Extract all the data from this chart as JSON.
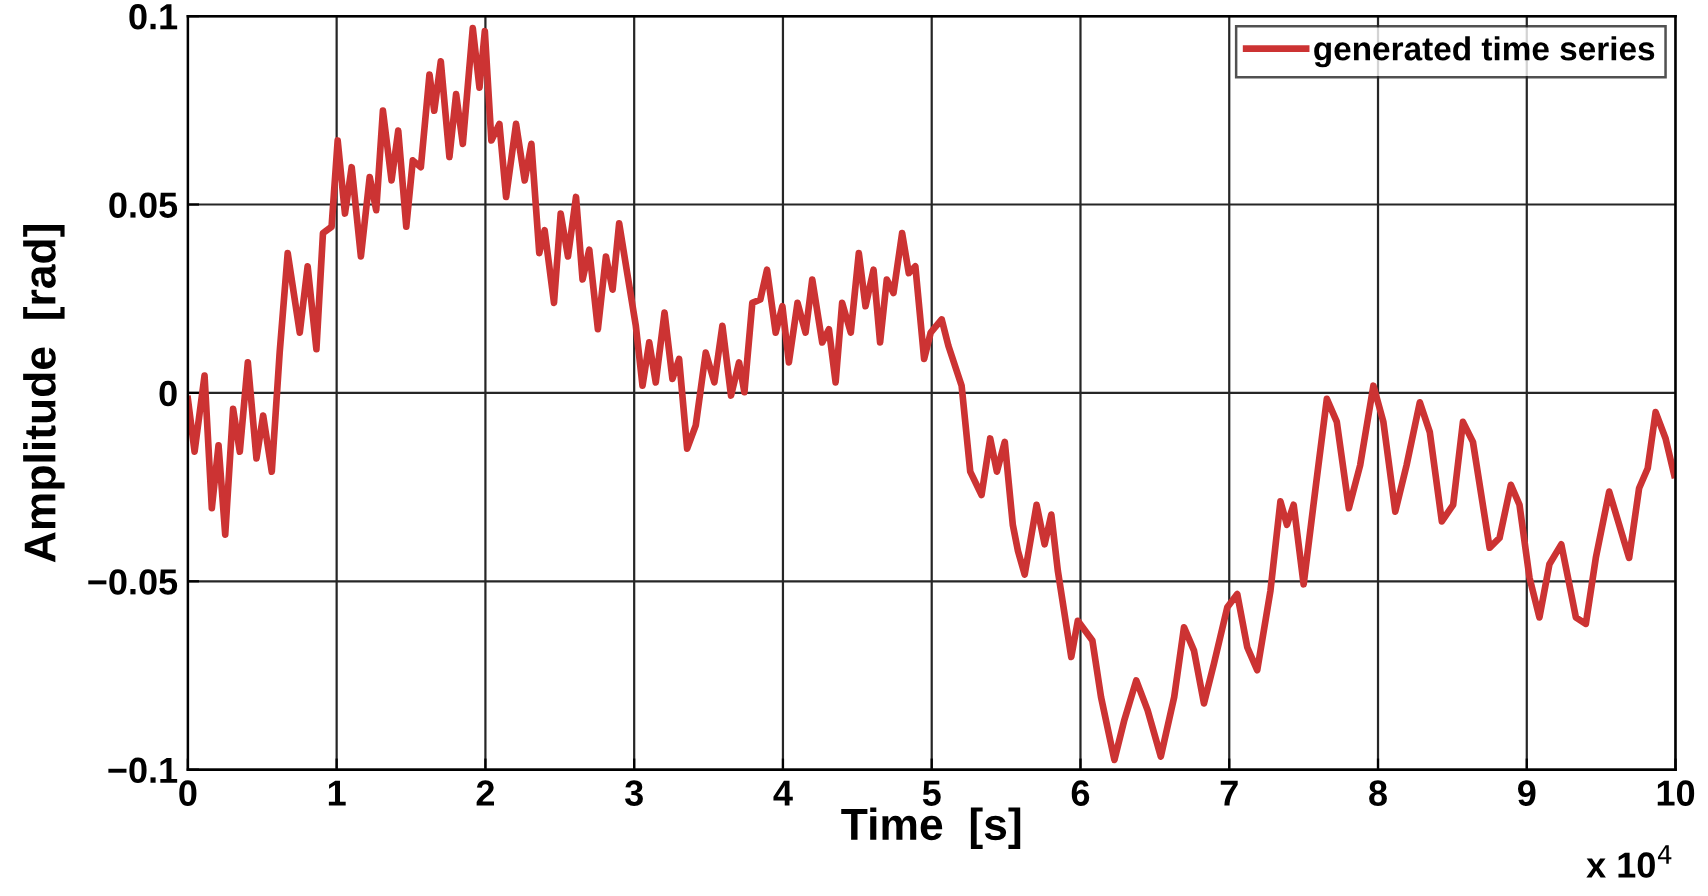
{
  "chart_data": {
    "type": "line",
    "xlabel": "Time  [s]",
    "ylabel": "Amplitude  [rad]",
    "x": [
      0,
      0.045,
      0.112,
      0.161,
      0.206,
      0.251,
      0.304,
      0.349,
      0.403,
      0.461,
      0.506,
      0.564,
      0.617,
      0.671,
      0.752,
      0.805,
      0.864,
      0.908,
      0.966,
      1.007,
      1.056,
      1.101,
      1.163,
      1.222,
      1.266,
      1.311,
      1.369,
      1.414,
      1.468,
      1.512,
      1.566,
      1.624,
      1.656,
      1.7,
      1.758,
      1.803,
      1.848,
      1.915,
      1.96,
      1.996,
      2.04,
      2.094,
      2.139,
      2.206,
      2.264,
      2.309,
      2.362,
      2.398,
      2.461,
      2.506,
      2.555,
      2.609,
      2.653,
      2.698,
      2.756,
      2.81,
      2.855,
      2.899,
      2.953,
      3.011,
      3.056,
      3.101,
      3.145,
      3.204,
      3.257,
      3.302,
      3.356,
      3.414,
      3.481,
      3.539,
      3.593,
      3.651,
      3.705,
      3.741,
      3.794,
      3.848,
      3.893,
      3.951,
      3.996,
      4.04,
      4.098,
      4.152,
      4.197,
      4.264,
      4.309,
      4.354,
      4.398,
      4.456,
      4.51,
      4.555,
      4.609,
      4.653,
      4.698,
      4.743,
      4.801,
      4.846,
      4.89,
      4.949,
      4.993,
      5.067,
      5.112,
      5.201,
      5.259,
      5.335,
      5.393,
      5.438,
      5.491,
      5.545,
      5.58,
      5.625,
      5.705,
      5.759,
      5.804,
      5.848,
      5.938,
      5.982,
      6.08,
      6.138,
      6.228,
      6.295,
      6.375,
      6.451,
      6.54,
      6.63,
      6.696,
      6.763,
      6.83,
      6.897,
      6.987,
      7.054,
      7.121,
      7.188,
      7.277,
      7.344,
      7.388,
      7.433,
      7.5,
      7.58,
      7.656,
      7.723,
      7.804,
      7.88,
      7.969,
      8.036,
      8.116,
      8.192,
      8.281,
      8.348,
      8.429,
      8.505,
      8.571,
      8.638,
      8.75,
      8.817,
      8.893,
      8.951,
      9.018,
      9.085,
      9.152,
      9.232,
      9.286,
      9.33,
      9.397,
      9.464,
      9.554,
      9.621,
      9.688,
      9.755,
      9.813,
      9.866,
      9.933,
      9.991
    ],
    "series": [
      {
        "name": "generated time series",
        "color": "#cc3333",
        "values": [
          -0.0016,
          -0.0156,
          0.0046,
          -0.0306,
          -0.0139,
          -0.0376,
          -0.0042,
          -0.0156,
          0.0081,
          -0.0174,
          -0.006,
          -0.0209,
          0.0107,
          0.0371,
          0.016,
          0.0336,
          0.0116,
          0.0424,
          0.0441,
          0.067,
          0.0476,
          0.0599,
          0.0362,
          0.0573,
          0.0485,
          0.0749,
          0.0564,
          0.0696,
          0.0441,
          0.0617,
          0.0599,
          0.0845,
          0.0749,
          0.088,
          0.0626,
          0.0793,
          0.0661,
          0.0968,
          0.081,
          0.096,
          0.067,
          0.0714,
          0.052,
          0.0714,
          0.0564,
          0.0661,
          0.0371,
          0.0432,
          0.0239,
          0.0476,
          0.0362,
          0.052,
          0.0301,
          0.038,
          0.0169,
          0.0362,
          0.0274,
          0.045,
          0.0318,
          0.0178,
          0.0019,
          0.0134,
          0.0028,
          0.0213,
          0.0037,
          0.009,
          -0.0148,
          -0.0086,
          0.0107,
          0.0028,
          0.0178,
          -0.0007,
          0.0081,
          0.0002,
          0.0239,
          0.0248,
          0.0327,
          0.016,
          0.023,
          0.0081,
          0.0239,
          0.016,
          0.0301,
          0.0134,
          0.0169,
          0.0028,
          0.0239,
          0.016,
          0.0371,
          0.023,
          0.0327,
          0.0134,
          0.0301,
          0.0265,
          0.0424,
          0.0318,
          0.0336,
          0.009,
          0.016,
          0.0195,
          0.0125,
          0.0019,
          -0.0209,
          -0.0271,
          -0.0121,
          -0.0209,
          -0.013,
          -0.035,
          -0.042,
          -0.0482,
          -0.0297,
          -0.0402,
          -0.0323,
          -0.0473,
          -0.0701,
          -0.0605,
          -0.0657,
          -0.0807,
          -0.0974,
          -0.0868,
          -0.0763,
          -0.0842,
          -0.0965,
          -0.0807,
          -0.0622,
          -0.0684,
          -0.0824,
          -0.0719,
          -0.0569,
          -0.0534,
          -0.0675,
          -0.0736,
          -0.0525,
          -0.0288,
          -0.035,
          -0.0297,
          -0.0508,
          -0.0253,
          -0.0016,
          -0.0077,
          -0.0306,
          -0.0192,
          0.0019,
          -0.0077,
          -0.0315,
          -0.0192,
          -0.0025,
          -0.0104,
          -0.0341,
          -0.0297,
          -0.0077,
          -0.013,
          -0.0411,
          -0.0385,
          -0.0244,
          -0.0297,
          -0.049,
          -0.0596,
          -0.0455,
          -0.0402,
          -0.0508,
          -0.0596,
          -0.0613,
          -0.0438,
          -0.0262,
          -0.035,
          -0.0438,
          -0.0253,
          -0.02,
          -0.0051,
          -0.0121,
          -0.0218
        ]
      }
    ],
    "xlim": [
      0,
      10
    ],
    "xticks": [
      0,
      1,
      2,
      3,
      4,
      5,
      6,
      7,
      8,
      9,
      10
    ],
    "ylim": [
      -0.1,
      0.1
    ],
    "yticks": [
      {
        "value": -0.1,
        "label": "−0.1"
      },
      {
        "value": -0.05,
        "label": "−0.05"
      },
      0,
      0.05,
      0.1
    ],
    "annotations": [
      "x 10$^{4}$"
    ],
    "grid": true,
    "legend": "top right",
    "marker": "none",
    "line_style": "solid"
  }
}
